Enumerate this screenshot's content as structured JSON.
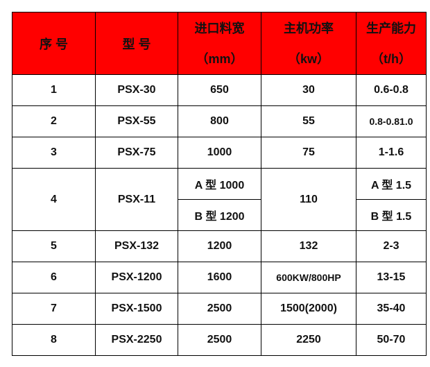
{
  "header": {
    "index": "序  号",
    "model": "型  号",
    "feed_width": {
      "title": "进口料宽",
      "unit": "（mm）"
    },
    "power": {
      "title": "主机功率",
      "unit": "（kw）"
    },
    "capacity": {
      "title": "生产能力",
      "unit": "（t/h）"
    }
  },
  "header_color": "#ff0000",
  "rows": [
    {
      "no": "1",
      "model": "PSX-30",
      "feed": "650",
      "power": "30",
      "capacity": "0.6-0.8"
    },
    {
      "no": "2",
      "model": "PSX-55",
      "feed": "800",
      "power": "55",
      "capacity": "0.8-0.81.0"
    },
    {
      "no": "3",
      "model": "PSX-75",
      "feed": "1000",
      "power": "75",
      "capacity": "1-1.6"
    },
    {
      "no": "4",
      "model": "PSX-11",
      "feed_a": "A 型 1000",
      "feed_b": "B 型 1200",
      "power": "110",
      "capacity_a": "A 型 1.5",
      "capacity_b": "B 型 1.5"
    },
    {
      "no": "5",
      "model": "PSX-132",
      "feed": "1200",
      "power": "132",
      "capacity": "2-3"
    },
    {
      "no": "6",
      "model": "PSX-1200",
      "feed": "1600",
      "power": "600KW/800HP",
      "capacity": "13-15"
    },
    {
      "no": "7",
      "model": "PSX-1500",
      "feed": "2500",
      "power": "1500(2000)",
      "capacity": "35-40"
    },
    {
      "no": "8",
      "model": "PSX-2250",
      "feed": "2500",
      "power": "2250",
      "capacity": "50-70"
    }
  ]
}
